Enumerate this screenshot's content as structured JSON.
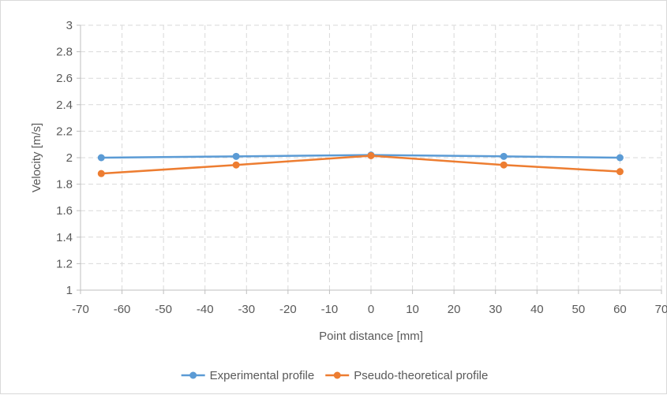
{
  "chart_data": {
    "type": "line",
    "xlabel": "Point distance [mm]",
    "ylabel": "Velocity [m/s]",
    "xlim": [
      -70,
      70
    ],
    "ylim": [
      1,
      3
    ],
    "xticks": [
      -70,
      -60,
      -50,
      -40,
      -30,
      -20,
      -10,
      0,
      10,
      20,
      30,
      40,
      50,
      60,
      70
    ],
    "yticks": [
      1,
      1.2,
      1.4,
      1.6,
      1.8,
      2,
      2.2,
      2.4,
      2.6,
      2.8,
      3
    ],
    "grid": true,
    "legend_position": "bottom",
    "series": [
      {
        "name": "Experimental profile",
        "color": "#5b9bd5",
        "points": [
          [
            -65,
            2.0
          ],
          [
            -32.5,
            2.01
          ],
          [
            0,
            2.02
          ],
          [
            32,
            2.01
          ],
          [
            60,
            2.0
          ]
        ]
      },
      {
        "name": "Pseudo-theoretical profile",
        "color": "#ed7d31",
        "points": [
          [
            -65,
            1.88
          ],
          [
            -32.5,
            1.945
          ],
          [
            0,
            2.015
          ],
          [
            32,
            1.945
          ],
          [
            60,
            1.895
          ]
        ]
      }
    ]
  }
}
